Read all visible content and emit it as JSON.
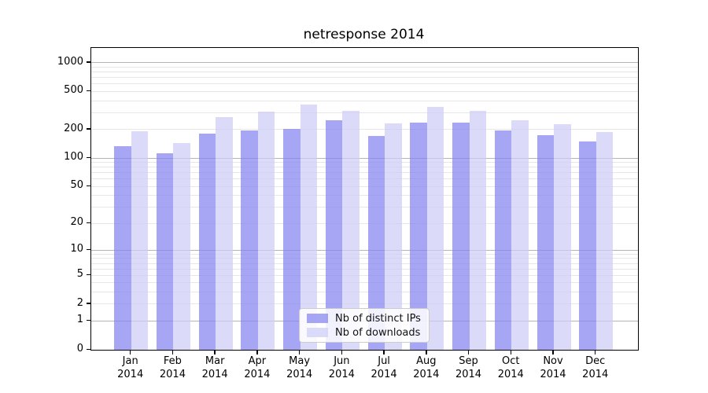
{
  "figure": {
    "title": "netresponse 2014"
  },
  "chart_data": {
    "type": "bar",
    "title": "netresponse 2014",
    "categories": [
      "Jan 2014",
      "Feb 2014",
      "Mar 2014",
      "Apr 2014",
      "May 2014",
      "Jun 2014",
      "Jul 2014",
      "Aug 2014",
      "Sep 2014",
      "Oct 2014",
      "Nov 2014",
      "Dec 2014"
    ],
    "x_tick_months": [
      "Jan",
      "Feb",
      "Mar",
      "Apr",
      "May",
      "Jun",
      "Jul",
      "Aug",
      "Sep",
      "Oct",
      "Nov",
      "Dec"
    ],
    "x_tick_year": "2014",
    "series": [
      {
        "name": "Nb of distinct IPs",
        "color": "rgba(132,132,240,0.72)",
        "values": [
          134,
          113,
          180,
          195,
          201,
          252,
          170,
          236,
          237,
          195,
          175,
          150
        ]
      },
      {
        "name": "Nb of downloads",
        "color": "rgba(205,205,247,0.72)",
        "values": [
          191,
          143,
          270,
          310,
          368,
          316,
          232,
          345,
          317,
          249,
          228,
          189
        ]
      }
    ],
    "yscale": "log1p",
    "ylim": [
      0,
      1430
    ],
    "yticks": [
      1000,
      500,
      200,
      100,
      50,
      20,
      10,
      5,
      2,
      1,
      0
    ],
    "major_gridlines": [
      1,
      10,
      100,
      1000
    ],
    "minor_gridlines": [
      2,
      3,
      4,
      5,
      6,
      7,
      8,
      9,
      20,
      30,
      40,
      50,
      60,
      70,
      80,
      90,
      200,
      300,
      400,
      500,
      600,
      700,
      800,
      900
    ],
    "grid": true,
    "legend_position": "lower center",
    "colors": {
      "major_grid": "#b5b5b5",
      "minor_grid": "#e7e7e7",
      "axis": "#000000",
      "legend_border": "#cccccc"
    }
  }
}
